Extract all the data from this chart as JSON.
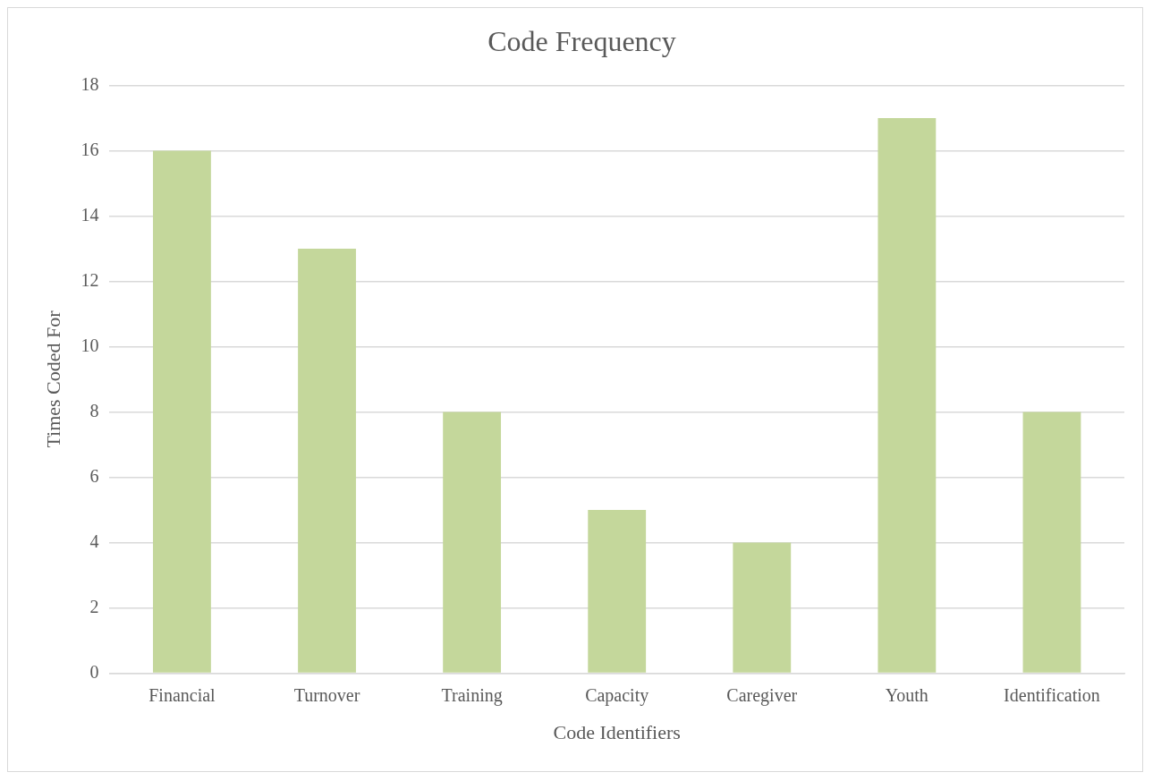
{
  "chart_data": {
    "type": "bar",
    "title": "Code Frequency",
    "xlabel": "Code Identifiers",
    "ylabel": "Times Coded For",
    "categories": [
      "Financial",
      "Turnover",
      "Training",
      "Capacity",
      "Caregiver",
      "Youth",
      "Identification"
    ],
    "values": [
      16,
      13,
      8,
      5,
      4,
      17,
      8
    ],
    "color": "#c4d79b",
    "ylim": [
      0,
      18
    ],
    "yticks": [
      0,
      2,
      4,
      6,
      8,
      10,
      12,
      14,
      16,
      18
    ],
    "grid": "y"
  }
}
